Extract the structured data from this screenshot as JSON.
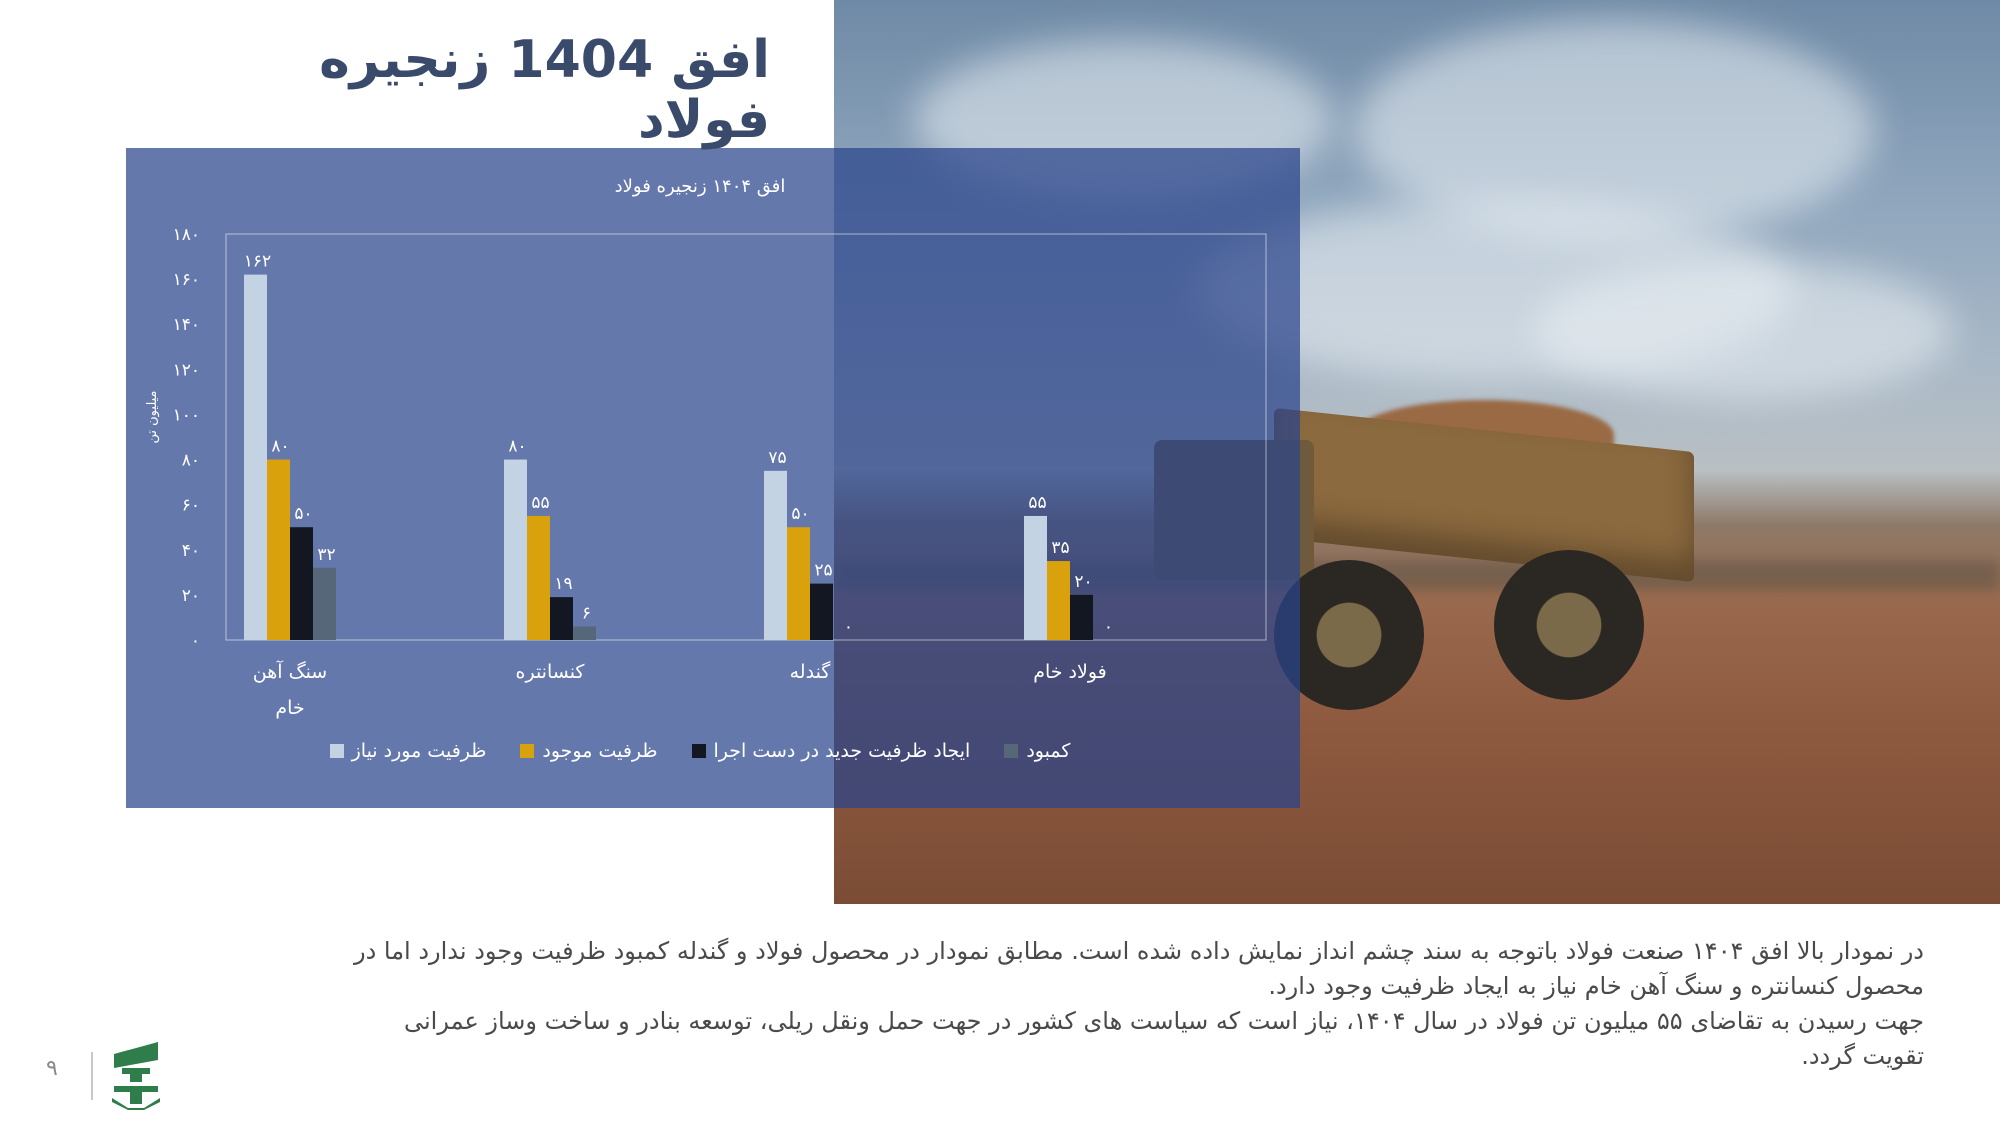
{
  "page": {
    "title": "افق 1404 زنجیره فولاد",
    "page_number": "۹"
  },
  "chart_data": {
    "type": "bar",
    "title": "افق ۱۴۰۴ زنجیره فولاد",
    "ylabel": "میلیون تن",
    "ylim": [
      0,
      180
    ],
    "yticks": [
      0,
      20,
      40,
      60,
      80,
      100,
      120,
      140,
      160,
      180
    ],
    "ytick_labels": [
      "۰",
      "۲۰",
      "۴۰",
      "۶۰",
      "۸۰",
      "۱۰۰",
      "۱۲۰",
      "۱۴۰",
      "۱۶۰",
      "۱۸۰"
    ],
    "categories": [
      "سنگ آهن خام",
      "کنسانتره",
      "گندله",
      "فولاد خام"
    ],
    "category_lines": [
      [
        "سنگ آهن",
        "خام"
      ],
      [
        "کنسانتره"
      ],
      [
        "گندله"
      ],
      [
        "فولاد خام"
      ]
    ],
    "series": [
      {
        "name": "ظرفیت مورد نیاز",
        "color": "#c4d3e3",
        "values": [
          162,
          80,
          75,
          55
        ],
        "labels": [
          "۱۶۲",
          "۸۰",
          "۷۵",
          "۵۵"
        ]
      },
      {
        "name": "ظرفیت موجود",
        "color": "#d9a10c",
        "values": [
          80,
          55,
          50,
          35
        ],
        "labels": [
          "۸۰",
          "۵۵",
          "۵۰",
          "۳۵"
        ]
      },
      {
        "name": "ایجاد ظرفیت جدید در دست اجرا",
        "color": "#121722",
        "values": [
          50,
          19,
          25,
          20
        ],
        "labels": [
          "۵۰",
          "۱۹",
          "۲۵",
          "۲۰"
        ]
      },
      {
        "name": "کمبود",
        "color": "#56677a",
        "values": [
          32,
          6,
          0,
          0
        ],
        "labels": [
          "۳۲",
          "۶",
          "۰",
          "۰"
        ]
      }
    ],
    "legend": "bottom",
    "grid": false
  },
  "caption": {
    "line1": "در نمودار بالا افق ۱۴۰۴ صنعت فولاد باتوجه به سند چشم انداز نمایش داده شده است. مطابق نمودار در محصول فولاد و گندله کمبود ظرفیت وجود ندارد اما در",
    "line2": "محصول کنسانتره و سنگ آهن خام نیاز به ایجاد ظرفیت وجود دارد.",
    "line3": "جهت رسیدن به تقاضای ۵۵ میلیون تن فولاد در سال ۱۴۰۴، نیاز است که سیاست های کشور در جهت حمل ونقل ریلی، توسعه بنادر و ساخت وساز عمرانی",
    "line4": "تقویت گردد."
  }
}
